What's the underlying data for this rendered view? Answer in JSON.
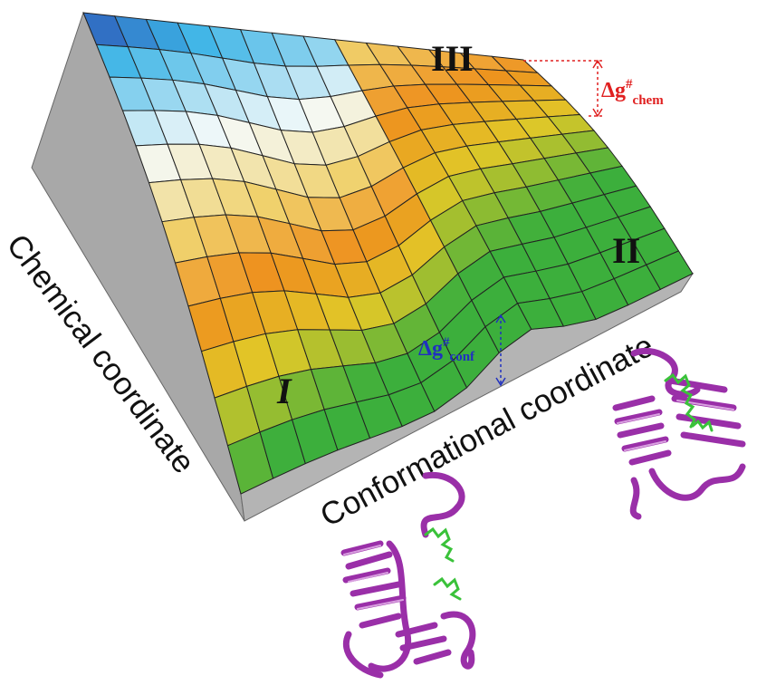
{
  "labels": {
    "chemical_axis": "Chemical coordinate",
    "conformational_axis": "Conformational coordinate",
    "state_1": "I",
    "state_2": "II",
    "state_3": "III",
    "barrier_chem": {
      "symbol": "Δg",
      "sup": "#",
      "sub": "chem"
    },
    "barrier_conf": {
      "symbol": "Δg",
      "sup": "#",
      "sub": "conf"
    }
  }
}
